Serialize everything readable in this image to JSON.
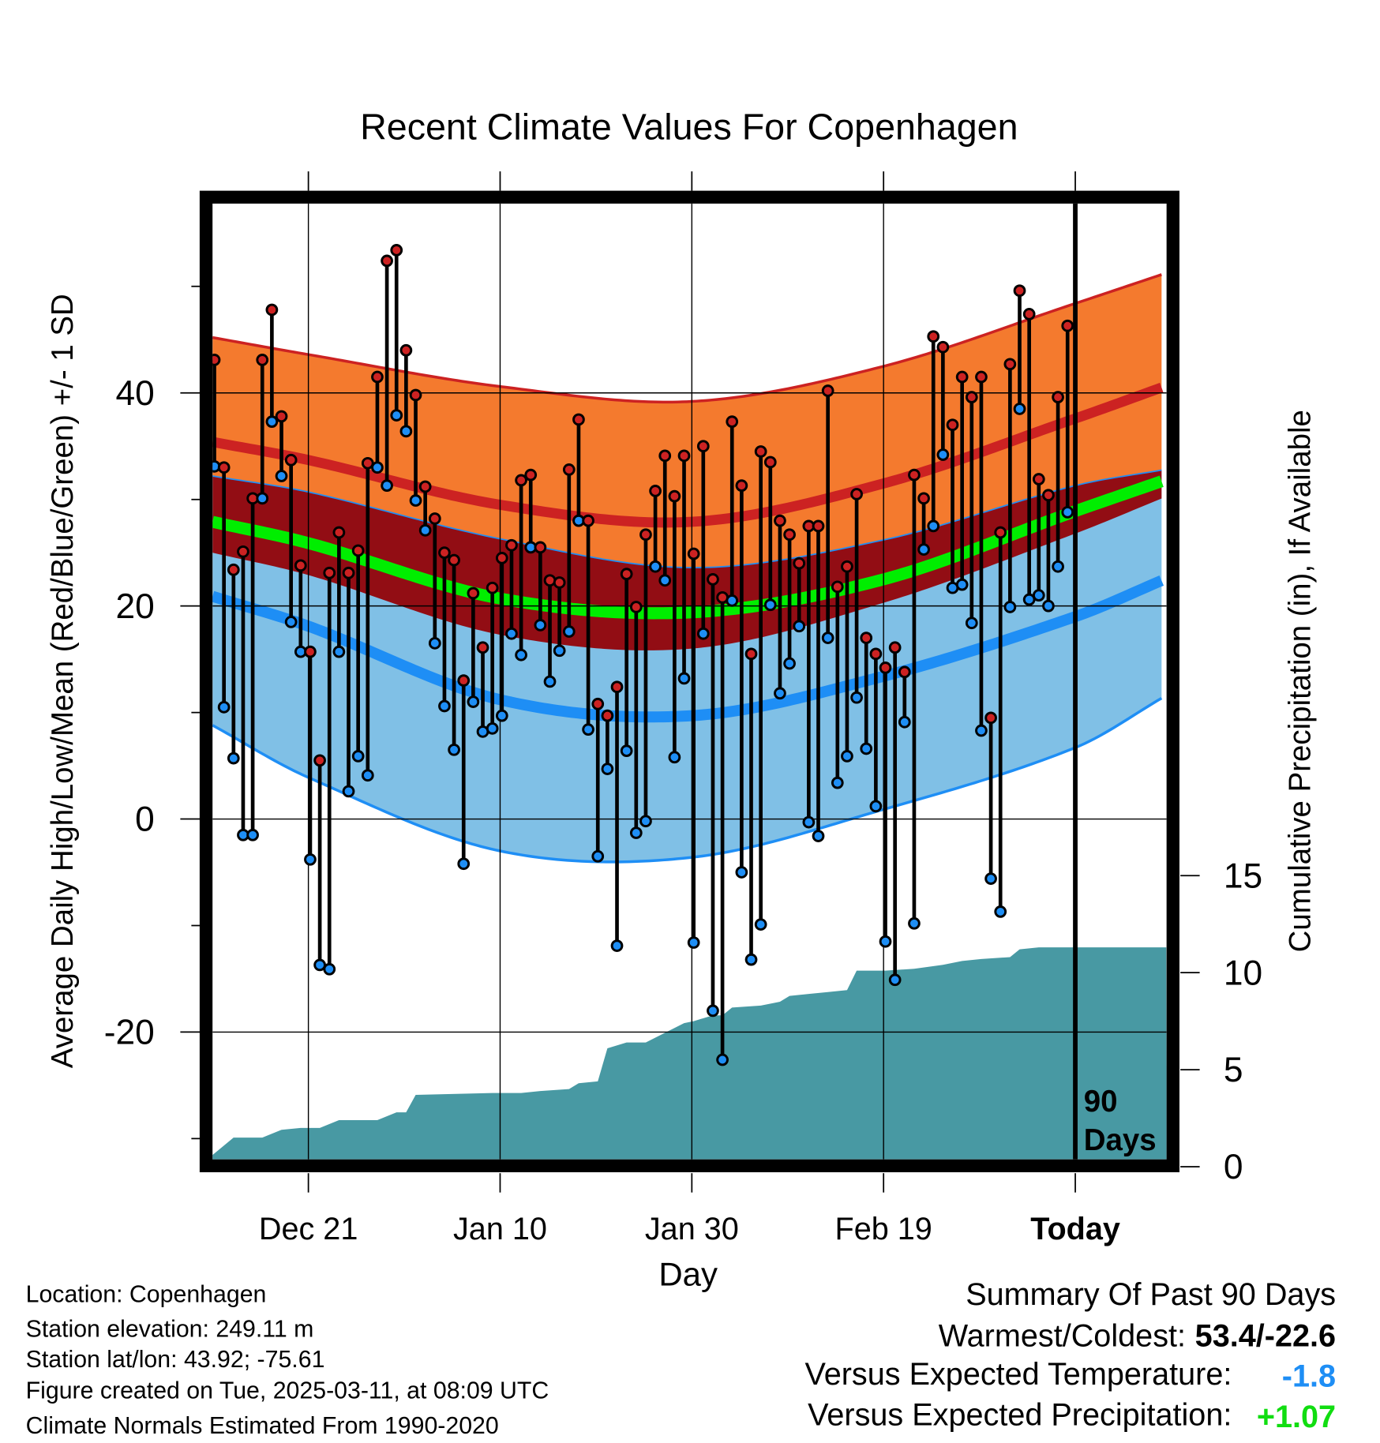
{
  "chart_data": {
    "type": "line",
    "title": "Recent Climate Values For Copenhagen",
    "xlabel": "Day",
    "ylabel": "Average Daily High/Low/Mean (Red/Blue/Green) +/- 1 SD",
    "y2label": "Cumulative Precipitation (in), If Available",
    "ylim": [
      -33,
      60
    ],
    "y2lim": [
      0,
      48
    ],
    "grid": true,
    "x_range_days": [
      0,
      99.3
    ],
    "x_ticks": [
      {
        "day": 10,
        "label": "Dec 21"
      },
      {
        "day": 30,
        "label": "Jan 10"
      },
      {
        "day": 50,
        "label": "Jan 30"
      },
      {
        "day": 70,
        "label": "Feb 19"
      },
      {
        "day": 90,
        "label": "Today"
      }
    ],
    "y_ticks": [
      -20,
      0,
      20,
      40
    ],
    "y_minor_ticks": [
      -30,
      -10,
      10,
      30,
      50
    ],
    "y2_ticks": [
      0,
      5,
      10,
      15
    ],
    "today_label": [
      "90",
      "Days"
    ],
    "daily_high": [
      43.1,
      33.0,
      23.4,
      25.1,
      30.1,
      43.1,
      47.8,
      37.8,
      33.7,
      23.8,
      15.7,
      5.5,
      23.1,
      26.9,
      23.1,
      25.2,
      33.4,
      41.5,
      52.4,
      53.4,
      44.0,
      39.8,
      31.2,
      28.2,
      25.0,
      24.3,
      13.0,
      21.2,
      16.1,
      21.7,
      24.5,
      25.7,
      31.8,
      32.3,
      25.5,
      22.4,
      22.2,
      32.8,
      37.5,
      28.0,
      10.8,
      9.7,
      12.4,
      23.0,
      19.9,
      26.7,
      30.8,
      34.1,
      30.3,
      34.1,
      24.9,
      35.0,
      22.5,
      20.8,
      37.3,
      31.3,
      15.5,
      34.5,
      33.5,
      28.0,
      26.7,
      24.0,
      27.5,
      27.5,
      40.2,
      21.8,
      23.7,
      30.5,
      17.0,
      15.5,
      14.2,
      16.1,
      13.8,
      32.3,
      30.1,
      45.3,
      44.3,
      37.0,
      41.5,
      39.6,
      41.5,
      9.5,
      26.9,
      42.7,
      49.6,
      47.4,
      31.9,
      30.4,
      39.6,
      46.3
    ],
    "daily_low": [
      33.1,
      10.5,
      5.7,
      -1.5,
      -1.5,
      30.1,
      37.3,
      32.2,
      18.5,
      15.7,
      -3.8,
      -13.7,
      -14.1,
      15.7,
      2.6,
      5.9,
      4.1,
      33.0,
      31.3,
      37.9,
      36.4,
      29.9,
      27.1,
      16.5,
      10.6,
      6.5,
      -4.2,
      11.0,
      8.2,
      8.5,
      9.7,
      17.4,
      15.4,
      25.5,
      18.2,
      12.9,
      15.8,
      17.6,
      28.0,
      8.4,
      -3.5,
      4.7,
      -11.9,
      6.4,
      -1.3,
      -0.2,
      23.7,
      22.4,
      5.8,
      13.2,
      -11.6,
      17.4,
      -18.0,
      -22.6,
      20.5,
      -5.0,
      -13.2,
      -9.9,
      20.1,
      11.8,
      14.6,
      18.1,
      -0.3,
      -1.6,
      17.0,
      3.4,
      5.9,
      11.4,
      6.6,
      1.2,
      -11.5,
      -15.1,
      9.1,
      -9.8,
      25.3,
      27.5,
      34.2,
      21.7,
      22.0,
      18.4,
      8.3,
      -5.6,
      -8.7,
      19.9,
      38.5,
      20.6,
      21.0,
      20.0,
      23.7,
      28.8
    ],
    "normals": {
      "days": [
        0,
        10,
        30,
        50,
        70,
        90,
        99.3
      ],
      "high_plus_sd": [
        45.2,
        43.6,
        40.6,
        39.2,
        42.5,
        48.4,
        51.2
      ],
      "high_mean": [
        35.4,
        33.7,
        29.5,
        27.9,
        31.5,
        37.6,
        40.6
      ],
      "low_plus_sd": [
        32.2,
        30.7,
        26.3,
        23.6,
        26.2,
        31.3,
        32.8
      ],
      "mean": [
        27.9,
        25.9,
        20.7,
        19.4,
        22.5,
        28.9,
        31.8
      ],
      "high_minus_sd": [
        25.0,
        22.9,
        17.3,
        16.0,
        20.3,
        26.8,
        30.2
      ],
      "low_mean": [
        20.9,
        18.1,
        11.2,
        9.7,
        13.4,
        19.0,
        22.5
      ],
      "low_minus_sd": [
        8.8,
        3.9,
        -3.0,
        -3.6,
        0.9,
        6.7,
        11.5
      ]
    },
    "precip_cumulative": [
      [
        -0.2,
        0.6
      ],
      [
        2,
        1.5
      ],
      [
        5,
        1.5
      ],
      [
        7,
        1.9
      ],
      [
        9,
        2.0
      ],
      [
        11,
        2.0
      ],
      [
        13,
        2.4
      ],
      [
        17,
        2.4
      ],
      [
        19,
        2.8
      ],
      [
        20,
        2.8
      ],
      [
        21,
        3.7
      ],
      [
        29,
        3.8
      ],
      [
        32,
        3.8
      ],
      [
        34,
        3.9
      ],
      [
        37,
        4.0
      ],
      [
        38,
        4.3
      ],
      [
        40,
        4.4
      ],
      [
        41,
        6.1
      ],
      [
        43,
        6.4
      ],
      [
        45,
        6.4
      ],
      [
        47,
        6.9
      ],
      [
        49,
        7.4
      ],
      [
        50,
        7.5
      ],
      [
        52,
        7.8
      ],
      [
        53,
        7.8
      ],
      [
        54,
        8.2
      ],
      [
        57,
        8.3
      ],
      [
        59,
        8.5
      ],
      [
        60,
        8.8
      ],
      [
        62,
        8.9
      ],
      [
        64,
        9.0
      ],
      [
        66,
        9.1
      ],
      [
        67,
        10.1
      ],
      [
        70,
        10.1
      ],
      [
        73,
        10.2
      ],
      [
        76,
        10.4
      ],
      [
        78,
        10.6
      ],
      [
        80,
        10.7
      ],
      [
        83,
        10.8
      ],
      [
        84,
        11.2
      ],
      [
        86,
        11.3
      ],
      [
        99.3,
        11.3
      ]
    ],
    "colors": {
      "orange": "#f47a2e",
      "red_line": "#cc2222",
      "dark_red": "#920d14",
      "green": "#00ee00",
      "light_blue": "#80c0e6",
      "blue_line": "#1e8ef5",
      "precip": "#4899a3",
      "high_dot": "#cc2222",
      "low_dot": "#1e8ef5"
    }
  },
  "footer": {
    "location": "Location: Copenhagen",
    "elevation": "Station elevation: 249.11 m",
    "latlon": "Station lat/lon: 43.92; -75.61",
    "created": "Figure created on Tue, 2025-03-11, at 08:09 UTC",
    "normals": "Climate Normals Estimated From 1990-2020"
  },
  "summary": {
    "title": "Summary Of Past 90 Days",
    "warmest_label": "Warmest/Coldest:",
    "warmest_value": "53.4/-22.6",
    "temp_label": "Versus Expected Temperature:",
    "temp_value": "-1.8",
    "precip_label": "Versus Expected Precipitation:",
    "precip_value": "+1.07",
    "temp_color": "#1e8ef5",
    "precip_color": "#11dd11"
  }
}
